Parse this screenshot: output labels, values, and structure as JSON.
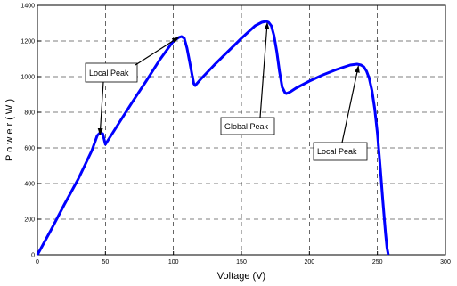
{
  "chart_data": {
    "type": "line",
    "title": "",
    "xlabel": "Voltage (V)",
    "ylabel": "P o w e r   ( W )",
    "xlim": [
      0,
      300
    ],
    "ylim": [
      0,
      1400
    ],
    "xticks": [
      0,
      50,
      100,
      150,
      200,
      250,
      300
    ],
    "yticks": [
      0,
      200,
      400,
      600,
      800,
      1000,
      1200,
      1400
    ],
    "grid": true,
    "line_color": "#0000ff",
    "series": [
      {
        "x": [
          0,
          10,
          20,
          30,
          40,
          44,
          46,
          48,
          50,
          55,
          60,
          70,
          80,
          90,
          100,
          104,
          106,
          108,
          110,
          112,
          114,
          115,
          116,
          120,
          130,
          140,
          150,
          160,
          165,
          168,
          170,
          172,
          174,
          176,
          178,
          180,
          182,
          183,
          186,
          190,
          200,
          210,
          220,
          230,
          235,
          238,
          240,
          242,
          244,
          246,
          248,
          250,
          252,
          254,
          256,
          257,
          258
        ],
        "y": [
          0,
          140,
          285,
          425,
          585,
          670,
          685,
          680,
          620,
          680,
          740,
          860,
          975,
          1095,
          1200,
          1220,
          1225,
          1215,
          1160,
          1080,
          1000,
          960,
          950,
          985,
          1065,
          1140,
          1215,
          1285,
          1305,
          1310,
          1305,
          1285,
          1230,
          1140,
          1030,
          940,
          910,
          905,
          915,
          935,
          975,
          1010,
          1040,
          1065,
          1070,
          1065,
          1055,
          1030,
          990,
          920,
          820,
          680,
          500,
          300,
          120,
          40,
          0
        ]
      }
    ],
    "annotations": [
      {
        "text": "Local Peak",
        "target": [
          46,
          685
        ]
      },
      {
        "text": "Global Peak",
        "target": [
          169,
          1310
        ]
      },
      {
        "text": "Local Peak",
        "target": [
          236,
          1068
        ]
      }
    ]
  }
}
